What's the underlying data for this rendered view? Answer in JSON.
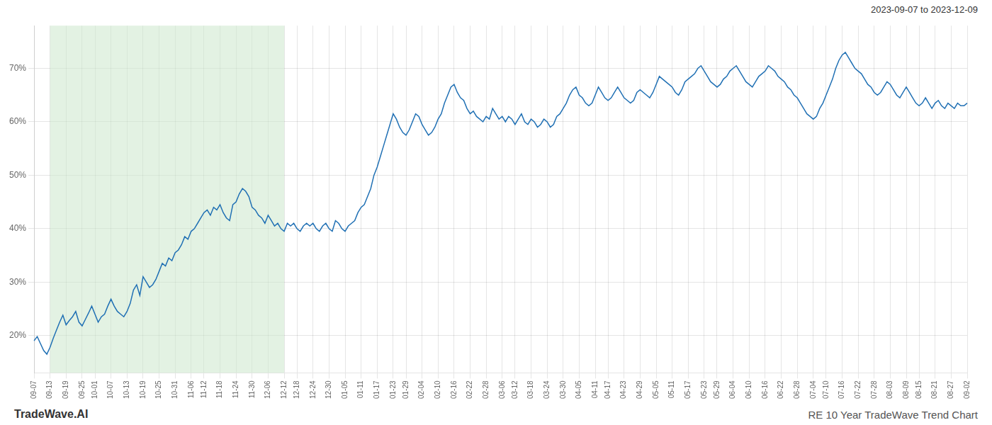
{
  "chart_data": {
    "type": "line",
    "title": "RE 10 Year TradeWave Trend Chart",
    "subtitle": "2023-09-07 to 2023-12-09",
    "annotations": [
      "TradeWave.AI"
    ],
    "color": "#2070b4",
    "grid": true,
    "shaded_range": [
      "09-13",
      "12-12"
    ],
    "shaded_color": "#cce8cc",
    "ylim": [
      13,
      78
    ],
    "yticks": [
      {
        "value": 20,
        "label": "20%"
      },
      {
        "value": 30,
        "label": "30%"
      },
      {
        "value": 40,
        "label": "40%"
      },
      {
        "value": 50,
        "label": "50%"
      },
      {
        "value": 60,
        "label": "60%"
      },
      {
        "value": 70,
        "label": "70%"
      }
    ],
    "categories": [
      "09-07",
      null,
      null,
      null,
      null,
      "09-13",
      null,
      null,
      null,
      null,
      "09-19",
      null,
      null,
      null,
      null,
      "09-25",
      null,
      null,
      null,
      "10-01",
      null,
      null,
      null,
      null,
      "10-07",
      null,
      null,
      null,
      null,
      "10-13",
      null,
      null,
      null,
      null,
      "10-19",
      null,
      null,
      null,
      null,
      "10-25",
      null,
      null,
      null,
      null,
      "10-31",
      null,
      null,
      null,
      null,
      "11-06",
      null,
      null,
      null,
      "11-12",
      null,
      null,
      null,
      null,
      "11-18",
      null,
      null,
      null,
      null,
      "11-24",
      null,
      null,
      null,
      null,
      "11-30",
      null,
      null,
      null,
      null,
      "12-06",
      null,
      null,
      null,
      null,
      "12-12",
      null,
      null,
      null,
      "12-18",
      null,
      null,
      null,
      null,
      "12-24",
      null,
      null,
      null,
      null,
      "12-30",
      null,
      null,
      null,
      null,
      "01-05",
      null,
      null,
      null,
      null,
      "01-11",
      null,
      null,
      null,
      null,
      "01-17",
      null,
      null,
      null,
      null,
      "01-23",
      null,
      null,
      null,
      "01-29",
      null,
      null,
      null,
      null,
      "02-04",
      null,
      null,
      null,
      null,
      "02-10",
      null,
      null,
      null,
      null,
      "02-16",
      null,
      null,
      null,
      null,
      "02-22",
      null,
      null,
      null,
      null,
      "02-28",
      null,
      null,
      null,
      null,
      "03-06",
      null,
      null,
      null,
      "03-12",
      null,
      null,
      null,
      null,
      "03-18",
      null,
      null,
      null,
      null,
      "03-24",
      null,
      null,
      null,
      null,
      "03-30",
      null,
      null,
      null,
      null,
      "04-05",
      null,
      null,
      null,
      null,
      "04-11",
      null,
      null,
      null,
      "04-17",
      null,
      null,
      null,
      null,
      "04-23",
      null,
      null,
      null,
      null,
      "04-29",
      null,
      null,
      null,
      null,
      "05-05",
      null,
      null,
      null,
      null,
      "05-11",
      null,
      null,
      null,
      null,
      "05-17",
      null,
      null,
      null,
      null,
      "05-23",
      null,
      null,
      null,
      "05-29",
      null,
      null,
      null,
      null,
      "06-04",
      null,
      null,
      null,
      null,
      "06-10",
      null,
      null,
      null,
      null,
      "06-16",
      null,
      null,
      null,
      null,
      "06-22",
      null,
      null,
      null,
      null,
      "06-28",
      null,
      null,
      null,
      null,
      "07-04",
      null,
      null,
      null,
      "07-10",
      null,
      null,
      null,
      null,
      "07-16",
      null,
      null,
      null,
      null,
      "07-22",
      null,
      null,
      null,
      null,
      "07-28",
      null,
      null,
      null,
      null,
      "08-03",
      null,
      null,
      null,
      null,
      "08-09",
      null,
      null,
      null,
      "08-15",
      null,
      null,
      null,
      null,
      "08-21",
      null,
      null,
      null,
      null,
      "08-27",
      null,
      null,
      null,
      null,
      "09-02"
    ],
    "values": [
      19.0,
      19.8,
      18.5,
      17.2,
      16.5,
      17.8,
      19.5,
      21.0,
      22.5,
      23.8,
      22.0,
      22.8,
      23.5,
      24.5,
      22.5,
      21.8,
      23.0,
      24.2,
      25.5,
      24.0,
      22.5,
      23.5,
      24.0,
      25.5,
      26.8,
      25.5,
      24.5,
      24.0,
      23.5,
      24.5,
      26.0,
      28.5,
      29.5,
      27.5,
      31.0,
      30.0,
      29.0,
      29.5,
      30.5,
      32.0,
      33.5,
      33.0,
      34.5,
      34.0,
      35.5,
      36.0,
      37.0,
      38.5,
      38.0,
      39.5,
      40.0,
      41.0,
      42.0,
      43.0,
      43.5,
      42.5,
      44.0,
      43.5,
      44.5,
      43.0,
      42.0,
      41.5,
      44.5,
      45.0,
      46.5,
      47.5,
      47.0,
      46.0,
      44.0,
      43.5,
      42.5,
      42.0,
      41.0,
      42.5,
      41.5,
      40.5,
      41.0,
      40.0,
      39.5,
      41.0,
      40.5,
      41.0,
      40.0,
      39.5,
      40.5,
      41.0,
      40.5,
      41.0,
      40.0,
      39.5,
      40.5,
      41.0,
      40.0,
      39.5,
      41.5,
      41.0,
      40.0,
      39.5,
      40.5,
      41.0,
      41.5,
      43.0,
      44.0,
      44.5,
      46.0,
      47.5,
      50.0,
      51.5,
      53.5,
      55.5,
      57.5,
      59.5,
      61.5,
      60.5,
      59.0,
      58.0,
      57.5,
      58.5,
      60.0,
      61.5,
      61.0,
      59.5,
      58.5,
      57.5,
      58.0,
      59.0,
      60.5,
      61.5,
      63.5,
      65.0,
      66.5,
      67.0,
      65.5,
      64.5,
      64.0,
      62.5,
      61.5,
      62.0,
      61.0,
      60.5,
      60.0,
      61.0,
      60.5,
      62.5,
      61.5,
      60.5,
      61.0,
      60.0,
      61.0,
      60.5,
      59.5,
      60.5,
      61.5,
      60.0,
      59.5,
      60.5,
      60.0,
      59.0,
      59.5,
      60.5,
      60.0,
      59.0,
      59.5,
      61.0,
      61.5,
      62.5,
      63.5,
      65.0,
      66.0,
      66.5,
      65.0,
      64.5,
      63.5,
      63.0,
      63.5,
      65.0,
      66.5,
      65.5,
      64.5,
      64.0,
      64.5,
      65.5,
      66.5,
      65.5,
      64.5,
      64.0,
      63.5,
      64.0,
      65.5,
      66.0,
      65.5,
      65.0,
      64.5,
      65.5,
      67.0,
      68.5,
      68.0,
      67.5,
      67.0,
      66.5,
      65.5,
      65.0,
      66.0,
      67.5,
      68.0,
      68.5,
      69.0,
      70.0,
      70.5,
      69.5,
      68.5,
      67.5,
      67.0,
      66.5,
      67.0,
      68.0,
      68.5,
      69.5,
      70.0,
      70.5,
      69.5,
      68.5,
      67.5,
      67.0,
      66.5,
      67.5,
      68.5,
      69.0,
      69.5,
      70.5,
      70.0,
      69.5,
      68.5,
      68.0,
      67.5,
      66.5,
      66.0,
      65.0,
      64.5,
      63.5,
      62.5,
      61.5,
      61.0,
      60.5,
      61.0,
      62.5,
      63.5,
      65.0,
      66.5,
      68.0,
      70.0,
      71.5,
      72.5,
      73.0,
      72.0,
      71.0,
      70.0,
      69.5,
      69.0,
      68.0,
      67.0,
      66.5,
      65.5,
      65.0,
      65.5,
      66.5,
      67.5,
      67.0,
      66.0,
      65.0,
      64.5,
      65.5,
      66.5,
      65.5,
      64.5,
      63.5,
      63.0,
      63.5,
      64.5,
      63.5,
      62.5,
      63.5,
      64.0,
      63.0,
      62.5,
      63.5,
      63.0,
      62.5,
      63.5,
      63.0,
      63.0,
      63.5
    ]
  }
}
